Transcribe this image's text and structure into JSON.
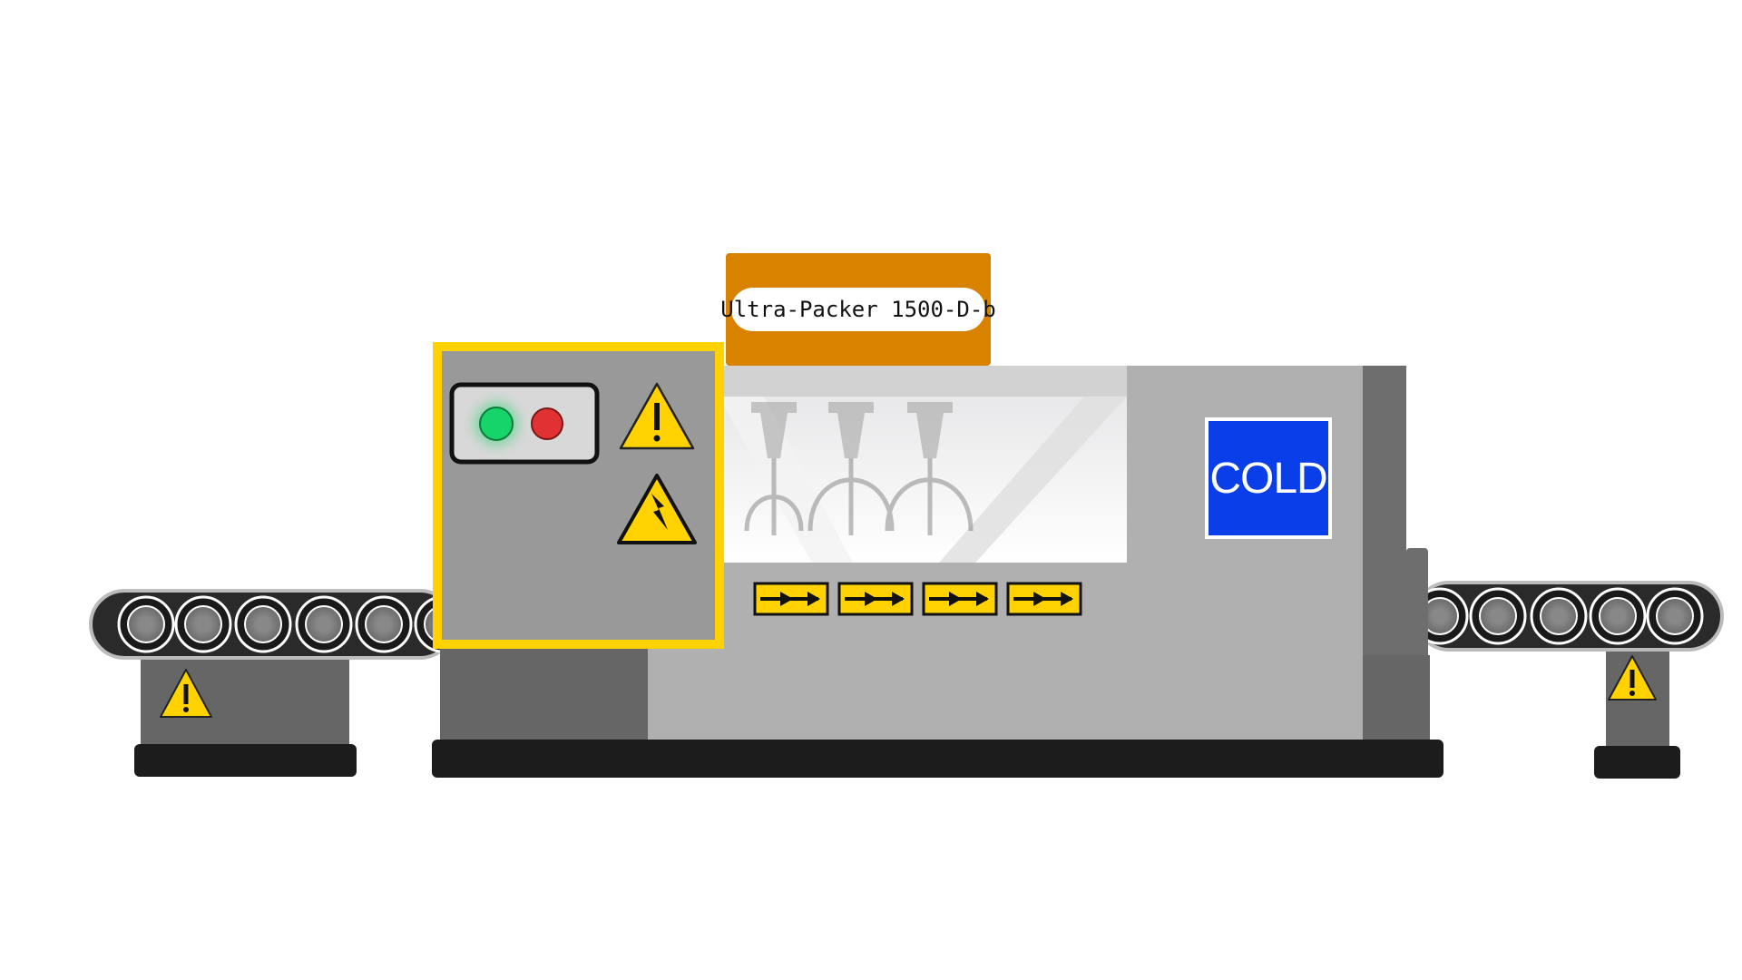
{
  "machine": {
    "model_label": "Ultra-Packer 1500-D-b",
    "temperature_sign": "COLD",
    "status_lights": {
      "start": "green-light",
      "stop": "red-light"
    }
  },
  "colors": {
    "accent_orange": "#d98200",
    "warning_yellow": "#ffd200",
    "cold_blue": "#0a3ee8",
    "body_gray": "#b0b0b0",
    "dark_gray": "#666666",
    "base_black": "#1c1c1c"
  },
  "icons": [
    "warning-icon",
    "high-voltage-icon",
    "direction-arrow-icon"
  ]
}
